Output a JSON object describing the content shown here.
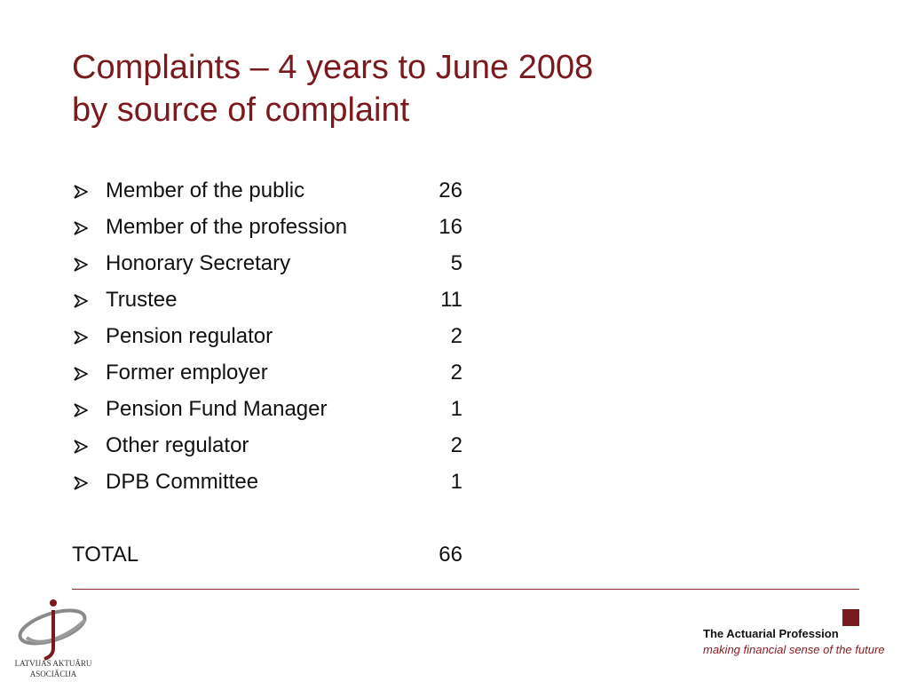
{
  "title": {
    "line1": "Complaints – 4 years to June 2008",
    "line2": "by source of complaint"
  },
  "bullet_icon": "arrow-bullet-icon",
  "items": [
    {
      "label": "Member of the public",
      "count": "26"
    },
    {
      "label": "Member of the profession",
      "count": "16"
    },
    {
      "label": "Honorary Secretary",
      "count": "5"
    },
    {
      "label": "Trustee",
      "count": "11"
    },
    {
      "label": "Pension regulator",
      "count": "2"
    },
    {
      "label": "Former employer",
      "count": "2"
    },
    {
      "label": "Pension Fund Manager",
      "count": "1"
    },
    {
      "label": "Other regulator",
      "count": "2"
    },
    {
      "label": "DPB Committee",
      "count": "1"
    }
  ],
  "total": {
    "label": "TOTAL",
    "count": "66"
  },
  "footer": {
    "left_logo": {
      "name": "LATVIJAS AKTUĀRU",
      "name2": "ASOCIĀCIJA"
    },
    "right_logo": {
      "name": "The Actuarial Profession",
      "tagline": "making financial sense of the future"
    }
  },
  "colors": {
    "title": "#7a1a1e",
    "accent": "#8a2a2e",
    "text": "#111111"
  }
}
